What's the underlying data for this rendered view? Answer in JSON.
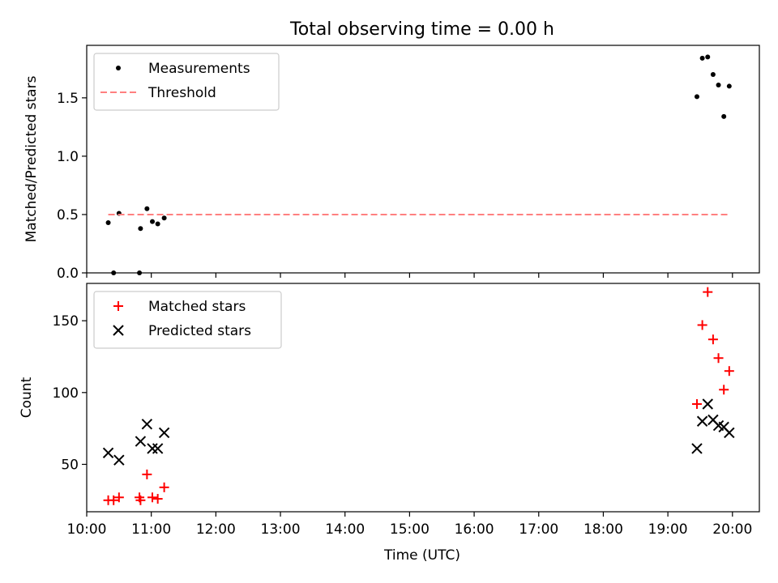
{
  "figure": {
    "title": "Total observing time = 0.00 h",
    "xlabel": "Time (UTC)"
  },
  "chart_data": [
    {
      "type": "scatter",
      "ylabel": "Matched/Predicted stars",
      "xlim": [
        "10:00",
        "20:25"
      ],
      "ylim": [
        0,
        1.95
      ],
      "yticks": [
        0.0,
        0.5,
        1.0,
        1.5
      ],
      "ytick_labels": [
        "0.0",
        "0.5",
        "1.0",
        "1.5"
      ],
      "xticks": [
        "10:00",
        "11:00",
        "12:00",
        "13:00",
        "14:00",
        "15:00",
        "16:00",
        "17:00",
        "18:00",
        "19:00",
        "20:00"
      ],
      "show_xtick_labels": false,
      "grid": false,
      "legend_position": "upper-left",
      "series": [
        {
          "name": "Measurements",
          "marker": "dot",
          "color": "#000000",
          "points": [
            {
              "x": "10:20",
              "y": 0.43
            },
            {
              "x": "10:25",
              "y": 0.0
            },
            {
              "x": "10:30",
              "y": 0.51
            },
            {
              "x": "10:49",
              "y": 0.0
            },
            {
              "x": "10:50",
              "y": 0.38
            },
            {
              "x": "10:56",
              "y": 0.55
            },
            {
              "x": "11:01",
              "y": 0.44
            },
            {
              "x": "11:06",
              "y": 0.42
            },
            {
              "x": "11:12",
              "y": 0.47
            },
            {
              "x": "19:27",
              "y": 1.51
            },
            {
              "x": "19:32",
              "y": 1.84
            },
            {
              "x": "19:37",
              "y": 1.85
            },
            {
              "x": "19:42",
              "y": 1.7
            },
            {
              "x": "19:47",
              "y": 1.61
            },
            {
              "x": "19:52",
              "y": 1.34
            },
            {
              "x": "19:57",
              "y": 1.6
            }
          ]
        },
        {
          "name": "Threshold",
          "marker": "dashed-line",
          "color": "#ff8080",
          "points": [
            {
              "x": "10:20",
              "y": 0.5
            },
            {
              "x": "19:57",
              "y": 0.5
            }
          ]
        }
      ]
    },
    {
      "type": "scatter",
      "ylabel": "Count",
      "xlim": [
        "10:00",
        "20:25"
      ],
      "ylim": [
        17,
        176
      ],
      "yticks": [
        50,
        100,
        150
      ],
      "ytick_labels": [
        "50",
        "100",
        "150"
      ],
      "xticks": [
        "10:00",
        "11:00",
        "12:00",
        "13:00",
        "14:00",
        "15:00",
        "16:00",
        "17:00",
        "18:00",
        "19:00",
        "20:00"
      ],
      "xtick_labels": [
        "10:00",
        "11:00",
        "12:00",
        "13:00",
        "14:00",
        "15:00",
        "16:00",
        "17:00",
        "18:00",
        "19:00",
        "20:00"
      ],
      "show_xtick_labels": true,
      "grid": false,
      "legend_position": "upper-left",
      "series": [
        {
          "name": "Matched stars",
          "marker": "plus",
          "color": "#ff0000",
          "points": [
            {
              "x": "10:20",
              "y": 25
            },
            {
              "x": "10:25",
              "y": 25
            },
            {
              "x": "10:30",
              "y": 27
            },
            {
              "x": "10:49",
              "y": 27
            },
            {
              "x": "10:50",
              "y": 25
            },
            {
              "x": "10:56",
              "y": 43
            },
            {
              "x": "11:01",
              "y": 27
            },
            {
              "x": "11:06",
              "y": 26
            },
            {
              "x": "11:12",
              "y": 34
            },
            {
              "x": "19:27",
              "y": 92
            },
            {
              "x": "19:32",
              "y": 147
            },
            {
              "x": "19:37",
              "y": 170
            },
            {
              "x": "19:42",
              "y": 137
            },
            {
              "x": "19:47",
              "y": 124
            },
            {
              "x": "19:52",
              "y": 102
            },
            {
              "x": "19:57",
              "y": 115
            }
          ]
        },
        {
          "name": "Predicted stars",
          "marker": "x",
          "color": "#000000",
          "points": [
            {
              "x": "10:20",
              "y": 58
            },
            {
              "x": "10:30",
              "y": 53
            },
            {
              "x": "10:50",
              "y": 66
            },
            {
              "x": "10:56",
              "y": 78
            },
            {
              "x": "11:01",
              "y": 61
            },
            {
              "x": "11:06",
              "y": 61
            },
            {
              "x": "11:12",
              "y": 72
            },
            {
              "x": "19:27",
              "y": 61
            },
            {
              "x": "19:32",
              "y": 80
            },
            {
              "x": "19:37",
              "y": 92
            },
            {
              "x": "19:42",
              "y": 81
            },
            {
              "x": "19:47",
              "y": 77
            },
            {
              "x": "19:52",
              "y": 76
            },
            {
              "x": "19:57",
              "y": 72
            }
          ]
        }
      ]
    }
  ]
}
